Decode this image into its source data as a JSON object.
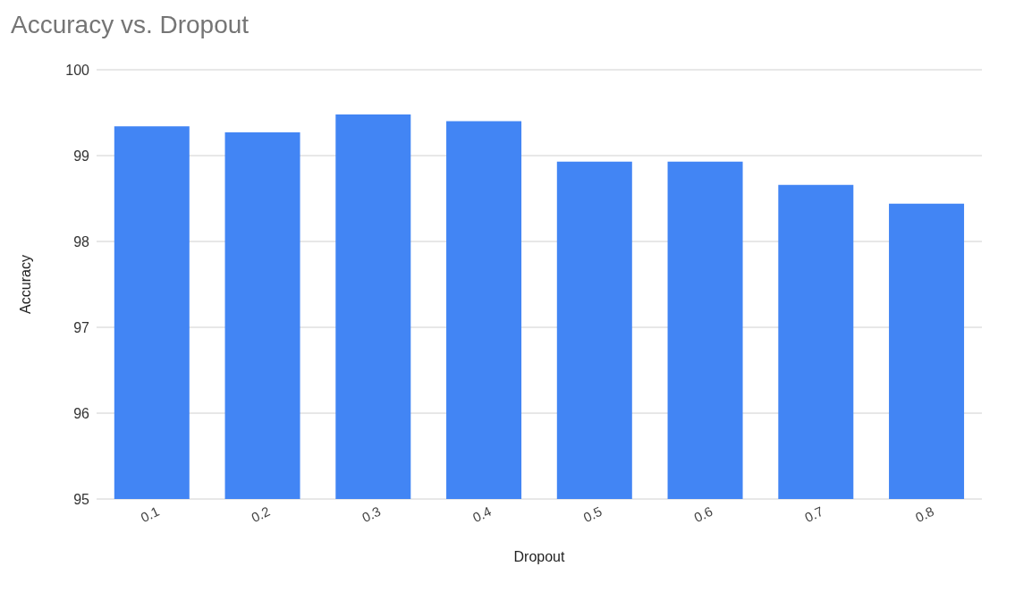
{
  "chart_data": {
    "type": "bar",
    "title": "Accuracy vs. Dropout",
    "xlabel": "Dropout",
    "ylabel": "Accuracy",
    "categories": [
      "0.1",
      "0.2",
      "0.3",
      "0.4",
      "0.5",
      "0.6",
      "0.7",
      "0.8"
    ],
    "values": [
      99.34,
      99.27,
      99.48,
      99.4,
      98.93,
      98.93,
      98.66,
      98.44
    ],
    "color": "#4285f4",
    "ylim": [
      95,
      100
    ],
    "yticks": [
      95,
      96,
      97,
      98,
      99,
      100
    ],
    "grid": "y"
  }
}
